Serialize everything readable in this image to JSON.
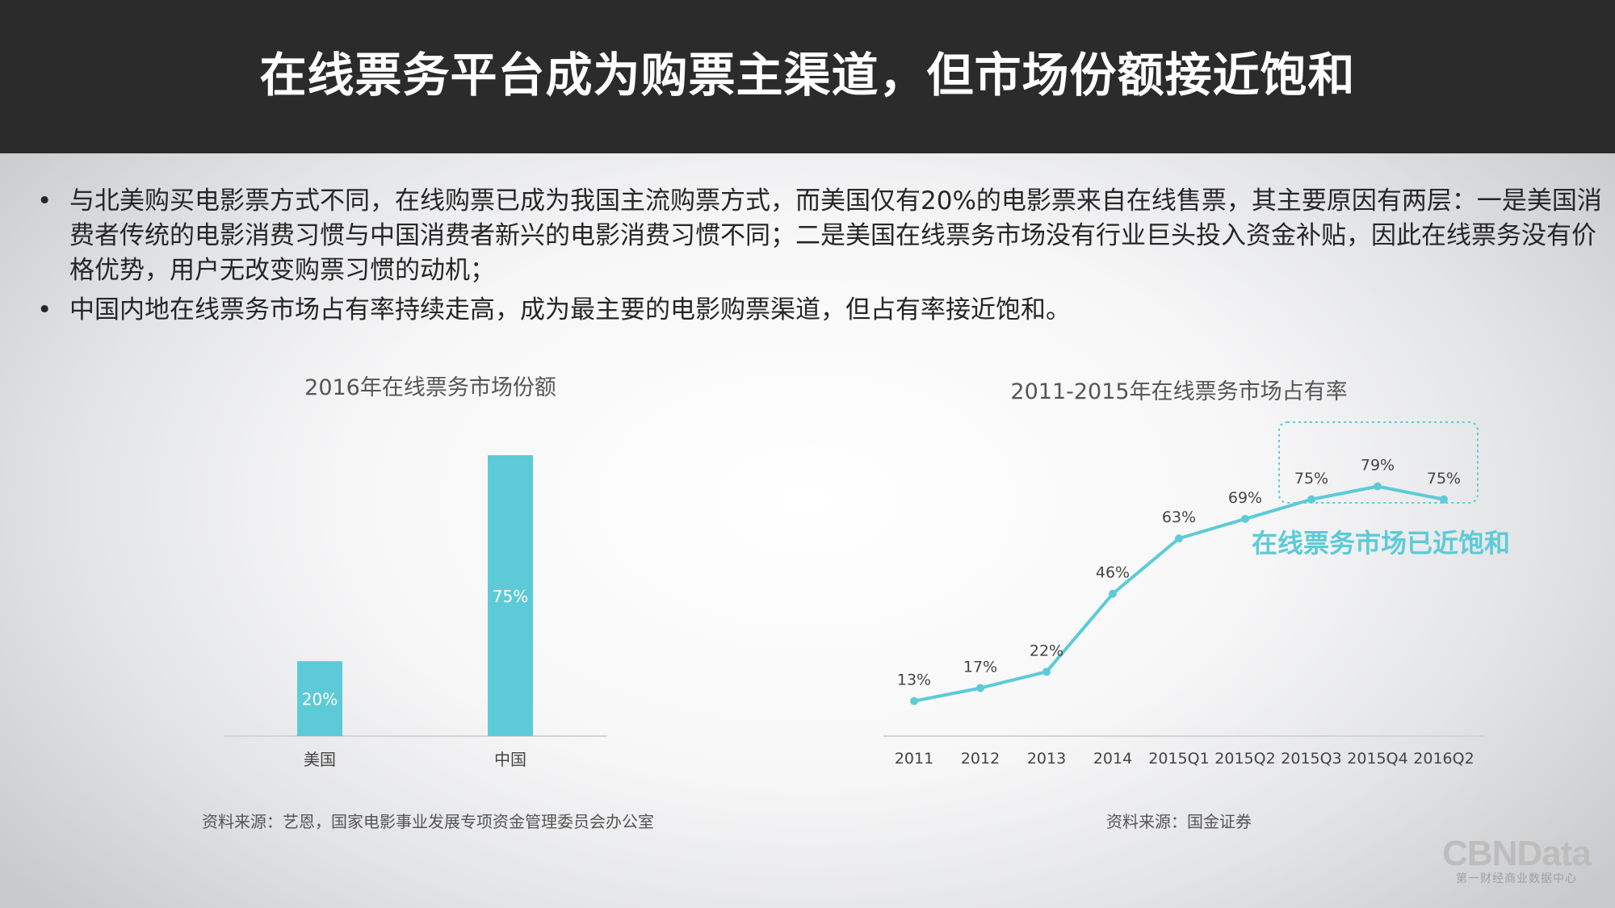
{
  "header": {
    "title": "在线票务平台成为购票主渠道，但市场份额接近饱和"
  },
  "bullets": [
    "与北美购买电影票方式不同，在线购票已成为我国主流购票方式，而美国仅有20%的电影票来自在线售票，其主要原因有两层：一是美国消费者传统的电影消费习惯与中国消费者新兴的电影消费习惯不同；二是美国在线票务市场没有行业巨头投入资金补贴，因此在线票务没有价格优势，用户无改变购票习惯的动机；",
    "中国内地在线票务市场占有率持续走高，成为最主要的电影购票渠道，但占有率接近饱和。"
  ],
  "bullet_symbol": "•",
  "left_chart": {
    "source": "资料来源：艺恩，国家电影事业发展专项资金管理委员会办公室"
  },
  "right_chart": {
    "source": "资料来源：国金证券",
    "highlight_label": "在线票务市场已近饱和"
  },
  "logo": {
    "main": "CBNData",
    "sub": "第一财经商业数据中心"
  },
  "colors": {
    "accent": "#5ccbd7",
    "header_bg": "#2b2b2b"
  },
  "chart_data": [
    {
      "type": "bar",
      "title": "2016年在线票务市场份额",
      "categories": [
        "美国",
        "中国"
      ],
      "values": [
        20,
        75
      ],
      "value_suffix": "%",
      "ylim": [
        0,
        80
      ],
      "xlabel": "",
      "ylabel": "",
      "grid": false,
      "color": "#5ccbd7"
    },
    {
      "type": "line",
      "title": "2011-2015年在线票务市场占有率",
      "x": [
        "2011",
        "2012",
        "2013",
        "2014",
        "2015Q1",
        "2015Q2",
        "2015Q3",
        "2015Q4",
        "2016Q2"
      ],
      "values": [
        13,
        17,
        22,
        46,
        63,
        69,
        75,
        79,
        75
      ],
      "value_suffix": "%",
      "ylim": [
        0,
        100
      ],
      "xlabel": "",
      "ylabel": "",
      "grid": false,
      "color": "#5ccbd7"
    }
  ]
}
